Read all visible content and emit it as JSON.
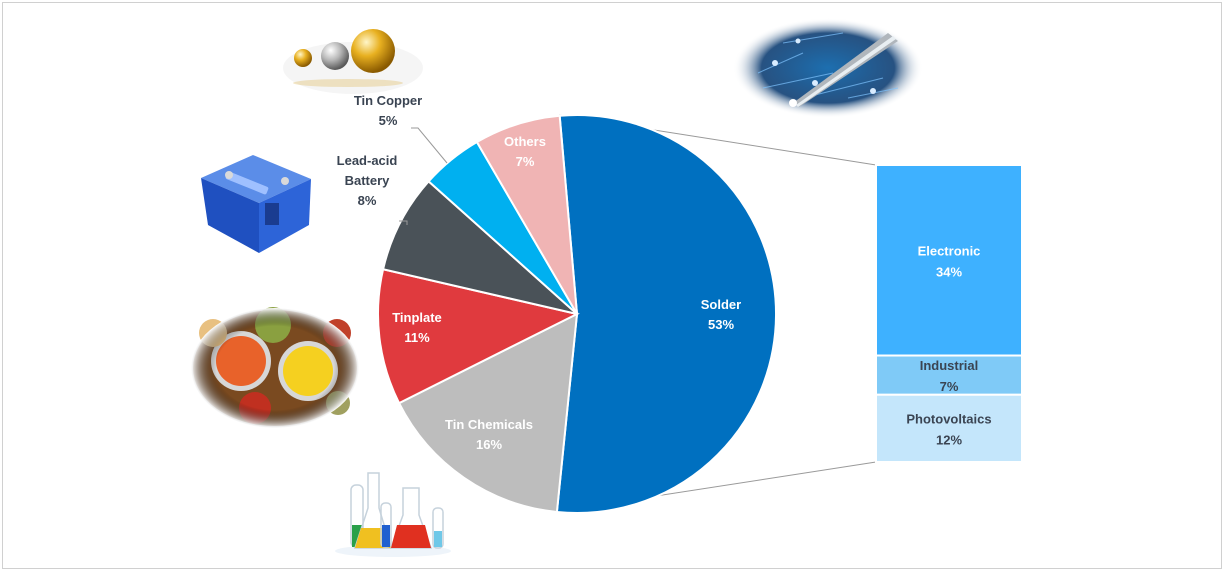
{
  "chart_data": {
    "type": "pie",
    "series": [
      {
        "slices": [
          {
            "label": "Solder",
            "value": 53,
            "pct": "53%",
            "color": "#0070c0",
            "text_color": "#ffffff"
          },
          {
            "label": "Tin Chemicals",
            "value": 16,
            "pct": "16%",
            "color": "#bdbdbd",
            "text_color": "#ffffff"
          },
          {
            "label": "Tinplate",
            "value": 11,
            "pct": "11%",
            "color": "#e03a3e",
            "text_color": "#ffffff"
          },
          {
            "label": "Lead-acid Battery",
            "label_lines": [
              "Lead-acid",
              "Battery"
            ],
            "value": 8,
            "pct": "8%",
            "color": "#4a5258",
            "text_color": "#3a4452"
          },
          {
            "label": "Tin Copper",
            "value": 5,
            "pct": "5%",
            "color": "#00b0f0",
            "text_color": "#3a4452"
          },
          {
            "label": "Others",
            "value": 7,
            "pct": "7%",
            "color": "#f0b4b4",
            "text_color": "#ffffff"
          }
        ]
      }
    ],
    "breakdown_of": "Solder",
    "breakdown": [
      {
        "label": "Electronic",
        "value": 34,
        "pct": "34%",
        "color": "#3eb1ff",
        "text_color": "#ffffff"
      },
      {
        "label": "Industrial",
        "value": 7,
        "pct": "7%",
        "color": "#7fcaf7",
        "text_color": "#3a4452"
      },
      {
        "label": "Photovoltaics",
        "value": 12,
        "pct": "12%",
        "color": "#c4e6fb",
        "text_color": "#3a4452"
      }
    ]
  },
  "illustrations": {
    "metal_balls": "metal-balls-illustration",
    "circuit_solder": "circuit-board-soldering-illustration",
    "battery": "car-battery-illustration",
    "canned_food": "canned-food-illustration",
    "lab_flasks": "laboratory-flasks-illustration"
  }
}
